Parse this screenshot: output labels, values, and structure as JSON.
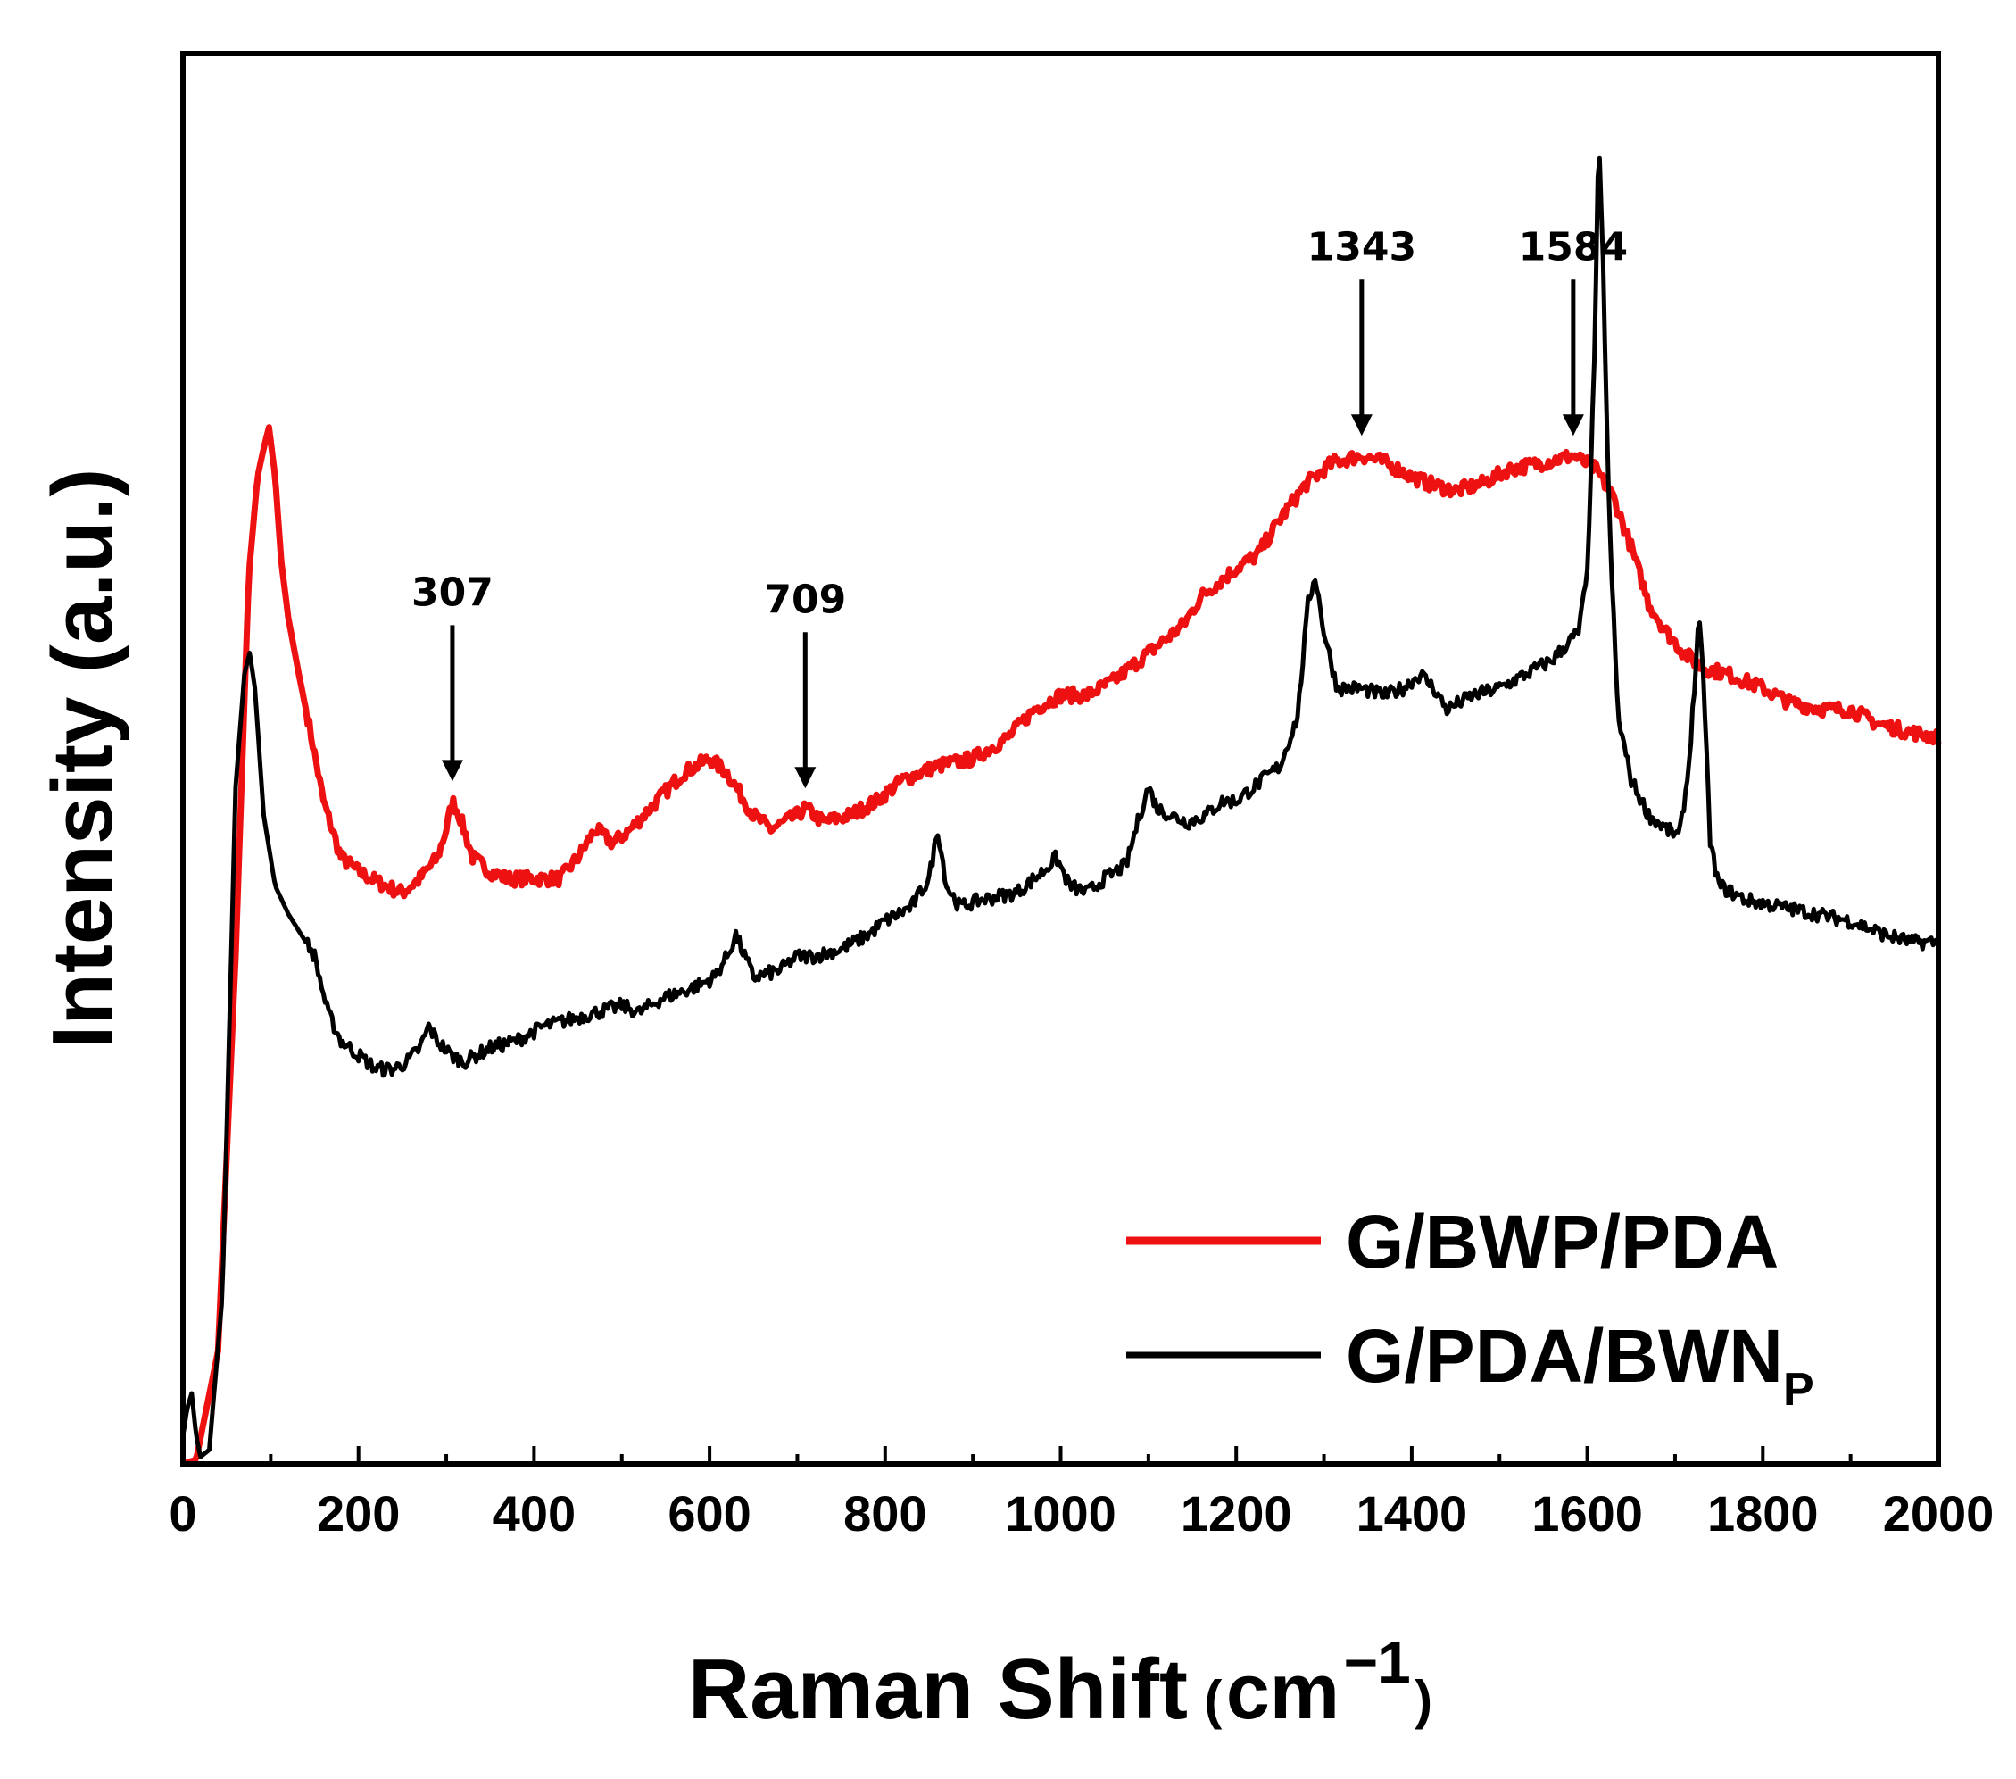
{
  "chart_data": {
    "type": "line",
    "title": "",
    "xlabel": "Raman Shift",
    "xlabel_unit": {
      "open": "(",
      "base": "cm",
      "sup": "−1",
      "close": ")"
    },
    "ylabel": "Intensity (a.u.)",
    "xlim": [
      0,
      2000
    ],
    "ylim": [
      0,
      100
    ],
    "y_ticks_labeled": false,
    "x_ticks": [
      0,
      200,
      400,
      600,
      800,
      1000,
      1200,
      1400,
      1600,
      1800,
      2000
    ],
    "x_tick_labels": [
      "0",
      "200",
      "400",
      "600",
      "800",
      "1000",
      "1200",
      "1400",
      "1600",
      "1800",
      "2000"
    ],
    "grid": false,
    "legend_position": "bottom-right",
    "series": [
      {
        "name": "G/BWP/PDA",
        "legend_label": "G/BWP/PDA",
        "color": "#ee1111",
        "points": [
          [
            0,
            0
          ],
          [
            15,
            0.3
          ],
          [
            40,
            8
          ],
          [
            60,
            36
          ],
          [
            75,
            63
          ],
          [
            85,
            70
          ],
          [
            92,
            72
          ],
          [
            98,
            73.5
          ],
          [
            105,
            70
          ],
          [
            112,
            64
          ],
          [
            120,
            60
          ],
          [
            132,
            56
          ],
          [
            145,
            52
          ],
          [
            160,
            47
          ],
          [
            180,
            43
          ],
          [
            200,
            42
          ],
          [
            215,
            41.5
          ],
          [
            230,
            41
          ],
          [
            250,
            40.5
          ],
          [
            270,
            41.5
          ],
          [
            290,
            43
          ],
          [
            300,
            45
          ],
          [
            307,
            47
          ],
          [
            315,
            46
          ],
          [
            330,
            43
          ],
          [
            350,
            42
          ],
          [
            370,
            41.5
          ],
          [
            400,
            41.5
          ],
          [
            430,
            41.5
          ],
          [
            450,
            43
          ],
          [
            470,
            45
          ],
          [
            490,
            44
          ],
          [
            510,
            45
          ],
          [
            540,
            47
          ],
          [
            570,
            49
          ],
          [
            600,
            50
          ],
          [
            620,
            49
          ],
          [
            650,
            46
          ],
          [
            670,
            45
          ],
          [
            700,
            46
          ],
          [
            709,
            46.5
          ],
          [
            730,
            45.5
          ],
          [
            760,
            46
          ],
          [
            790,
            47
          ],
          [
            820,
            48.5
          ],
          [
            860,
            49.5
          ],
          [
            900,
            50
          ],
          [
            940,
            51.5
          ],
          [
            970,
            53.5
          ],
          [
            1000,
            54.5
          ],
          [
            1030,
            54.5
          ],
          [
            1060,
            55.5
          ],
          [
            1100,
            57.5
          ],
          [
            1140,
            59.5
          ],
          [
            1160,
            61.5
          ],
          [
            1180,
            62.5
          ],
          [
            1200,
            63.5
          ],
          [
            1225,
            64.5
          ],
          [
            1250,
            67
          ],
          [
            1280,
            69.5
          ],
          [
            1310,
            71
          ],
          [
            1343,
            71.5
          ],
          [
            1370,
            71
          ],
          [
            1400,
            70
          ],
          [
            1420,
            69.5
          ],
          [
            1450,
            69
          ],
          [
            1480,
            69.5
          ],
          [
            1510,
            70.5
          ],
          [
            1550,
            71
          ],
          [
            1584,
            71.5
          ],
          [
            1610,
            70.5
          ],
          [
            1630,
            68.5
          ],
          [
            1650,
            65
          ],
          [
            1670,
            61
          ],
          [
            1690,
            59
          ],
          [
            1710,
            57.5
          ],
          [
            1730,
            56.5
          ],
          [
            1760,
            56
          ],
          [
            1800,
            55
          ],
          [
            1830,
            54
          ],
          [
            1870,
            53.5
          ],
          [
            1900,
            53.5
          ],
          [
            1930,
            52.5
          ],
          [
            1960,
            52
          ],
          [
            2000,
            51.5
          ]
        ]
      },
      {
        "name": "G/PDA/BWNP",
        "legend_label": "G/PDA/BWN",
        "legend_subscript": "P",
        "color": "#000000",
        "points": [
          [
            0,
            2
          ],
          [
            5,
            4
          ],
          [
            10,
            5
          ],
          [
            15,
            2
          ],
          [
            20,
            0.5
          ],
          [
            30,
            1
          ],
          [
            45,
            12
          ],
          [
            60,
            48
          ],
          [
            70,
            56
          ],
          [
            76,
            57.5
          ],
          [
            82,
            55
          ],
          [
            92,
            46
          ],
          [
            105,
            41
          ],
          [
            120,
            39
          ],
          [
            135,
            37.5
          ],
          [
            150,
            36
          ],
          [
            165,
            32
          ],
          [
            180,
            30
          ],
          [
            200,
            29
          ],
          [
            220,
            28
          ],
          [
            240,
            28
          ],
          [
            255,
            28.5
          ],
          [
            270,
            29.5
          ],
          [
            280,
            31
          ],
          [
            290,
            30
          ],
          [
            305,
            29
          ],
          [
            320,
            28.5
          ],
          [
            350,
            29.5
          ],
          [
            380,
            30
          ],
          [
            410,
            31
          ],
          [
            440,
            31.5
          ],
          [
            470,
            32
          ],
          [
            500,
            32.5
          ],
          [
            520,
            32
          ],
          [
            545,
            33
          ],
          [
            570,
            33.5
          ],
          [
            590,
            34
          ],
          [
            605,
            34.5
          ],
          [
            620,
            36
          ],
          [
            630,
            37.5
          ],
          [
            640,
            36
          ],
          [
            650,
            34.5
          ],
          [
            680,
            35
          ],
          [
            700,
            36
          ],
          [
            720,
            36
          ],
          [
            750,
            36.5
          ],
          [
            780,
            37.5
          ],
          [
            800,
            38.5
          ],
          [
            830,
            39.5
          ],
          [
            850,
            41.5
          ],
          [
            860,
            45
          ],
          [
            870,
            41
          ],
          [
            885,
            39.5
          ],
          [
            910,
            40
          ],
          [
            950,
            40.5
          ],
          [
            980,
            42
          ],
          [
            995,
            43
          ],
          [
            1010,
            41
          ],
          [
            1030,
            40.5
          ],
          [
            1050,
            41.5
          ],
          [
            1075,
            42.5
          ],
          [
            1090,
            46
          ],
          [
            1100,
            48
          ],
          [
            1110,
            46.5
          ],
          [
            1125,
            46
          ],
          [
            1145,
            45.5
          ],
          [
            1165,
            46
          ],
          [
            1185,
            47
          ],
          [
            1200,
            47
          ],
          [
            1220,
            48
          ],
          [
            1250,
            49.5
          ],
          [
            1270,
            53
          ],
          [
            1282,
            61
          ],
          [
            1290,
            63
          ],
          [
            1300,
            59
          ],
          [
            1315,
            55
          ],
          [
            1340,
            55
          ],
          [
            1370,
            54.5
          ],
          [
            1390,
            55
          ],
          [
            1410,
            56
          ],
          [
            1425,
            55
          ],
          [
            1440,
            53.5
          ],
          [
            1470,
            54.5
          ],
          [
            1500,
            55
          ],
          [
            1530,
            56
          ],
          [
            1560,
            57
          ],
          [
            1590,
            59
          ],
          [
            1600,
            63
          ],
          [
            1608,
            78
          ],
          [
            1613,
            94
          ],
          [
            1618,
            85
          ],
          [
            1625,
            67
          ],
          [
            1635,
            53
          ],
          [
            1650,
            48.5
          ],
          [
            1670,
            46
          ],
          [
            1690,
            45
          ],
          [
            1705,
            44.5
          ],
          [
            1715,
            49
          ],
          [
            1722,
            55
          ],
          [
            1727,
            60
          ],
          [
            1733,
            55
          ],
          [
            1740,
            44
          ],
          [
            1750,
            41
          ],
          [
            1780,
            40
          ],
          [
            1820,
            39.5
          ],
          [
            1860,
            39
          ],
          [
            1900,
            38.5
          ],
          [
            1940,
            37.5
          ],
          [
            1970,
            37
          ],
          [
            2000,
            37
          ]
        ]
      }
    ],
    "annotations": [
      {
        "label": "307",
        "x": 307,
        "target_series": 0
      },
      {
        "label": "709",
        "x": 709,
        "target_series": 0
      },
      {
        "label": "1343",
        "x": 1343,
        "target_series": 0
      },
      {
        "label": "1584",
        "x": 1584,
        "target_series": 0
      }
    ]
  }
}
